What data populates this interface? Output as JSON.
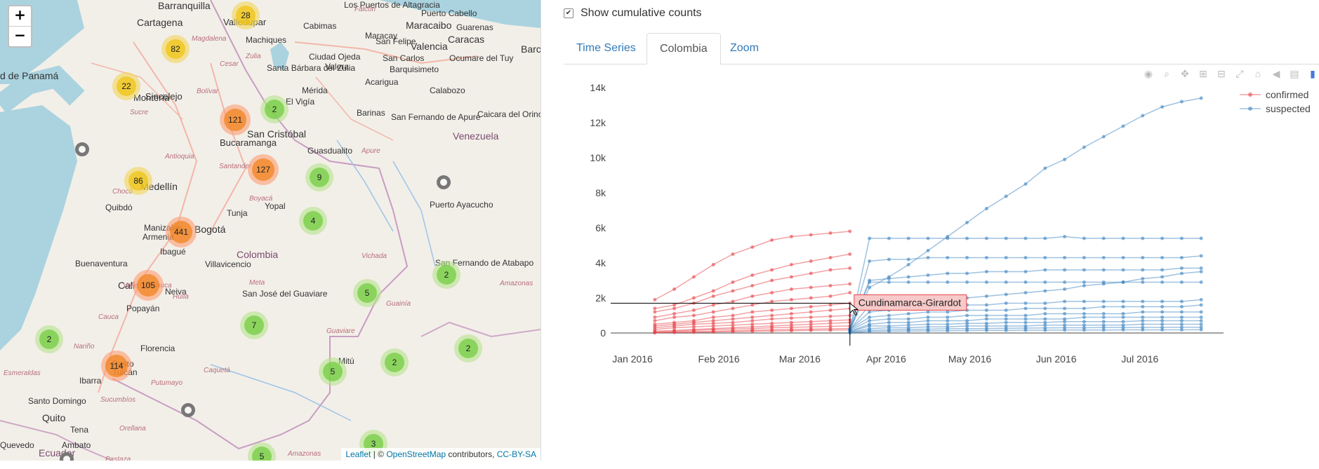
{
  "map": {
    "zoom_in": "+",
    "zoom_out": "−",
    "places": [
      {
        "name": "Barranquilla",
        "cls": "big"
      },
      {
        "name": "Cartagena",
        "cls": "big"
      },
      {
        "name": "Valledupar",
        "cls": ""
      },
      {
        "name": "Los Puertos de Altagracia",
        "cls": "small"
      },
      {
        "name": "Cabimas",
        "cls": "small"
      },
      {
        "name": "Maracaibo",
        "cls": "big"
      },
      {
        "name": "Puerto Cabello",
        "cls": "small"
      },
      {
        "name": "Maracay",
        "cls": "small"
      },
      {
        "name": "Guarenas",
        "cls": "small"
      },
      {
        "name": "Caracas",
        "cls": "big"
      },
      {
        "name": "Barc",
        "cls": "big"
      },
      {
        "name": "San Felipe",
        "cls": "small"
      },
      {
        "name": "Valencia",
        "cls": "big"
      },
      {
        "name": "San Carlos",
        "cls": "small"
      },
      {
        "name": "Ocumare del Tuy",
        "cls": "small"
      },
      {
        "name": "Machiques",
        "cls": "small"
      },
      {
        "name": "Ciudad Ojeda",
        "cls": "small"
      },
      {
        "name": "Santa Bárbara del Zulia",
        "cls": "small"
      },
      {
        "name": "Valera",
        "cls": "small"
      },
      {
        "name": "Barquisimeto",
        "cls": "small"
      },
      {
        "name": "Acarigua",
        "cls": "small"
      },
      {
        "name": "Calabozo",
        "cls": "small"
      },
      {
        "name": "Sincelejo",
        "cls": ""
      },
      {
        "name": "Montería",
        "cls": ""
      },
      {
        "name": "d de Panamá",
        "cls": "big"
      },
      {
        "name": "El Vigía",
        "cls": "small"
      },
      {
        "name": "Mérida",
        "cls": "small"
      },
      {
        "name": "Barinas",
        "cls": "small"
      },
      {
        "name": "San Cristóbal",
        "cls": "big"
      },
      {
        "name": "Bucaramanga",
        "cls": ""
      },
      {
        "name": "San Fernando de Apure",
        "cls": "small"
      },
      {
        "name": "Caicara del Orinoco",
        "cls": "small"
      },
      {
        "name": "Venezuela",
        "cls": "country"
      },
      {
        "name": "Guasdualito",
        "cls": "small"
      },
      {
        "name": "Medellín",
        "cls": "big"
      },
      {
        "name": "Quibdó",
        "cls": "small"
      },
      {
        "name": "Yopal",
        "cls": "small"
      },
      {
        "name": "Tunja",
        "cls": "small"
      },
      {
        "name": "Puerto Ayacucho",
        "cls": "small"
      },
      {
        "name": "Bogotá",
        "cls": "big"
      },
      {
        "name": "Manizales",
        "cls": "small"
      },
      {
        "name": "Armenia",
        "cls": "small"
      },
      {
        "name": "Ibagué",
        "cls": "small"
      },
      {
        "name": "Villavicencio",
        "cls": "small"
      },
      {
        "name": "Colombia",
        "cls": "country"
      },
      {
        "name": "Buenaventura",
        "cls": "small"
      },
      {
        "name": "Cali",
        "cls": "big"
      },
      {
        "name": "Neiva",
        "cls": "small"
      },
      {
        "name": "San José del Guaviare",
        "cls": "small"
      },
      {
        "name": "San Fernando de Atabapo",
        "cls": "small"
      },
      {
        "name": "Popayán",
        "cls": "small"
      },
      {
        "name": "Florencia",
        "cls": "small"
      },
      {
        "name": "Mitú",
        "cls": "small"
      },
      {
        "name": "Pasto",
        "cls": "small"
      },
      {
        "name": "Tulcán",
        "cls": "small"
      },
      {
        "name": "Ibarra",
        "cls": "small"
      },
      {
        "name": "Santo Domingo",
        "cls": "small"
      },
      {
        "name": "Quito",
        "cls": "big"
      },
      {
        "name": "Tena",
        "cls": "small"
      },
      {
        "name": "Quevedo",
        "cls": "small"
      },
      {
        "name": "Ambato",
        "cls": "small"
      },
      {
        "name": "Ecuador",
        "cls": "country"
      },
      {
        "name": "Pastaza",
        "cls": "region"
      },
      {
        "name": "Amazonas",
        "cls": "region"
      },
      {
        "name": "Guainía",
        "cls": "region"
      },
      {
        "name": "Vichada",
        "cls": "region"
      },
      {
        "name": "Guaviare",
        "cls": "region"
      },
      {
        "name": "Caquetá",
        "cls": "region"
      },
      {
        "name": "Putumayo",
        "cls": "region"
      },
      {
        "name": "Nariño",
        "cls": "region"
      },
      {
        "name": "Cauca",
        "cls": "region"
      },
      {
        "name": "Huila",
        "cls": "region"
      },
      {
        "name": "Meta",
        "cls": "region"
      },
      {
        "name": "Boyacá",
        "cls": "region"
      },
      {
        "name": "Santander",
        "cls": "region"
      },
      {
        "name": "Antioquia",
        "cls": "region"
      },
      {
        "name": "Chocó",
        "cls": "region"
      },
      {
        "name": "Sucre",
        "cls": "region"
      },
      {
        "name": "Bolívar",
        "cls": "region"
      },
      {
        "name": "Cesar",
        "cls": "region"
      },
      {
        "name": "Zulia",
        "cls": "region"
      },
      {
        "name": "Apure",
        "cls": "region"
      },
      {
        "name": "Valle del Cauca",
        "cls": "region"
      },
      {
        "name": "Sucumbíos",
        "cls": "region"
      },
      {
        "name": "Esmeraldas",
        "cls": "region"
      },
      {
        "name": "Orellana",
        "cls": "region"
      },
      {
        "name": "Falcón",
        "cls": "region"
      },
      {
        "name": "Magdalena",
        "cls": "region"
      },
      {
        "name": "Amazonas",
        "cls": "region"
      }
    ],
    "clusters": [
      {
        "label": "28",
        "color": "yellow"
      },
      {
        "label": "82",
        "color": "yellow"
      },
      {
        "label": "22",
        "color": "yellow"
      },
      {
        "label": "121",
        "color": "orange"
      },
      {
        "label": "2",
        "color": "green"
      },
      {
        "label": "127",
        "color": "orange"
      },
      {
        "label": "9",
        "color": "green"
      },
      {
        "label": "86",
        "color": "yellow"
      },
      {
        "label": "441",
        "color": "orange"
      },
      {
        "label": "4",
        "color": "green"
      },
      {
        "label": "105",
        "color": "orange"
      },
      {
        "label": "2",
        "color": "green"
      },
      {
        "label": "5",
        "color": "green"
      },
      {
        "label": "7",
        "color": "green"
      },
      {
        "label": "2",
        "color": "green"
      },
      {
        "label": "114",
        "color": "orange"
      },
      {
        "label": "5",
        "color": "green"
      },
      {
        "label": "2",
        "color": "green"
      },
      {
        "label": "2",
        "color": "green"
      },
      {
        "label": "3",
        "color": "green"
      },
      {
        "label": "5",
        "color": "green"
      }
    ],
    "attribution": {
      "leaflet": "Leaflet",
      "sep": " | © ",
      "osm": "OpenStreetMap",
      "contrib": " contributors, ",
      "license": "CC-BY-SA"
    }
  },
  "controls": {
    "cumulative_label": "Show cumulative counts",
    "cumulative_checked": true
  },
  "tabs": [
    {
      "label": "Time Series",
      "active": false
    },
    {
      "label": "Colombia",
      "active": true
    },
    {
      "label": "Zoom",
      "active": false
    }
  ],
  "modebar_icons": [
    "camera-icon",
    "zoom-icon",
    "pan-icon",
    "zoom-in-icon",
    "zoom-out-icon",
    "autoscale-icon",
    "reset-axes-icon",
    "spike-lines-icon",
    "hover-compare-icon",
    "plotly-logo-icon"
  ],
  "hover_label": "Cundinamarca-Girardot",
  "chart_data": {
    "type": "line",
    "x_ticks": [
      "Jan 2016",
      "Feb 2016",
      "Mar 2016",
      "Apr 2016",
      "May 2016",
      "Jun 2016",
      "Jul 2016"
    ],
    "y_ticks": [
      "14k",
      "12k",
      "10k",
      "8k",
      "6k",
      "4k",
      "2k",
      "0"
    ],
    "ylim": [
      0,
      14000
    ],
    "legend": [
      {
        "name": "confirmed",
        "color": "#e8464b"
      },
      {
        "name": "suspected",
        "color": "#3f86c2"
      }
    ],
    "confirmed_x": [
      "2016-01-09",
      "2016-01-16",
      "2016-01-23",
      "2016-01-30",
      "2016-02-06",
      "2016-02-13",
      "2016-02-20",
      "2016-02-27",
      "2016-03-05",
      "2016-03-12",
      "2016-03-19"
    ],
    "suspected_x": [
      "2016-03-19",
      "2016-03-26",
      "2016-04-02",
      "2016-04-09",
      "2016-04-16",
      "2016-04-23",
      "2016-04-30",
      "2016-05-07",
      "2016-05-14",
      "2016-05-21",
      "2016-05-28",
      "2016-06-04",
      "2016-06-11",
      "2016-06-18",
      "2016-06-25",
      "2016-07-02",
      "2016-07-09",
      "2016-07-16",
      "2016-07-23"
    ],
    "confirmed_series": [
      {
        "values": [
          1900,
          2500,
          3200,
          3900,
          4500,
          4900,
          5300,
          5500,
          5600,
          5700,
          5800
        ]
      },
      {
        "values": [
          1400,
          1600,
          2000,
          2400,
          2900,
          3300,
          3600,
          3900,
          4100,
          4300,
          4500
        ]
      },
      {
        "values": [
          1200,
          1400,
          1700,
          2100,
          2400,
          2700,
          3000,
          3200,
          3400,
          3600,
          3700
        ]
      },
      {
        "values": [
          900,
          1100,
          1300,
          1600,
          1800,
          2100,
          2300,
          2500,
          2600,
          2700,
          2800
        ]
      },
      {
        "values": [
          700,
          900,
          1000,
          1200,
          1400,
          1600,
          1800,
          1900,
          2000,
          2100,
          2300
        ]
      },
      {
        "values": [
          500,
          600,
          700,
          900,
          1000,
          1200,
          1300,
          1400,
          1500,
          1600,
          1700
        ]
      },
      {
        "values": [
          400,
          500,
          600,
          700,
          800,
          900,
          1000,
          1100,
          1200,
          1300,
          1400
        ]
      },
      {
        "values": [
          300,
          400,
          500,
          550,
          600,
          700,
          800,
          850,
          900,
          950,
          1000
        ]
      },
      {
        "values": [
          200,
          300,
          350,
          400,
          450,
          500,
          550,
          600,
          650,
          700,
          750
        ]
      },
      {
        "values": [
          100,
          150,
          200,
          250,
          300,
          350,
          400,
          450,
          500,
          550,
          600
        ]
      },
      {
        "values": [
          50,
          100,
          150,
          200,
          220,
          250,
          300,
          320,
          350,
          380,
          400
        ]
      },
      {
        "values": [
          30,
          50,
          80,
          100,
          120,
          150,
          180,
          200,
          220,
          240,
          260
        ]
      },
      {
        "values": [
          10,
          30,
          40,
          60,
          80,
          100,
          110,
          130,
          150,
          160,
          180
        ]
      }
    ],
    "suspected_series": [
      {
        "values": [
          200,
          2600,
          3200,
          3900,
          4700,
          5500,
          6300,
          7100,
          7800,
          8500,
          9400,
          9900,
          10600,
          11200,
          11800,
          12400,
          12900,
          13200,
          13400
        ]
      },
      {
        "values": [
          200,
          5400,
          5400,
          5400,
          5400,
          5400,
          5400,
          5400,
          5400,
          5400,
          5400,
          5500,
          5400,
          5400,
          5400,
          5400,
          5400,
          5400,
          5400
        ]
      },
      {
        "values": [
          200,
          4100,
          4200,
          4200,
          4300,
          4300,
          4300,
          4300,
          4300,
          4300,
          4300,
          4300,
          4300,
          4300,
          4300,
          4300,
          4300,
          4300,
          4400
        ]
      },
      {
        "values": [
          200,
          3000,
          3100,
          3200,
          3300,
          3400,
          3400,
          3500,
          3500,
          3500,
          3600,
          3600,
          3600,
          3600,
          3600,
          3600,
          3600,
          3700,
          3700
        ]
      },
      {
        "values": [
          200,
          2900,
          2900,
          2900,
          2900,
          2900,
          2900,
          2900,
          2900,
          2900,
          2900,
          2900,
          2900,
          2900,
          2900,
          2900,
          2900,
          2900,
          2900
        ]
      },
      {
        "values": [
          200,
          1600,
          1700,
          1800,
          1800,
          1900,
          2000,
          2100,
          2200,
          2300,
          2400,
          2500,
          2700,
          2800,
          2900,
          3100,
          3200,
          3400,
          3500
        ]
      },
      {
        "values": [
          200,
          1200,
          1300,
          1400,
          1500,
          1500,
          1600,
          1600,
          1700,
          1700,
          1700,
          1800,
          1800,
          1800,
          1800,
          1800,
          1800,
          1800,
          1900
        ]
      },
      {
        "values": [
          200,
          900,
          1000,
          1100,
          1200,
          1200,
          1300,
          1300,
          1300,
          1400,
          1400,
          1400,
          1400,
          1500,
          1500,
          1500,
          1500,
          1500,
          1600
        ]
      },
      {
        "values": [
          150,
          700,
          800,
          800,
          900,
          900,
          1000,
          1000,
          1000,
          1000,
          1100,
          1100,
          1100,
          1100,
          1100,
          1200,
          1200,
          1200,
          1200
        ]
      },
      {
        "values": [
          100,
          500,
          600,
          600,
          700,
          700,
          700,
          800,
          800,
          800,
          800,
          800,
          900,
          900,
          900,
          900,
          900,
          900,
          900
        ]
      },
      {
        "values": [
          80,
          400,
          400,
          450,
          500,
          500,
          550,
          550,
          600,
          600,
          600,
          650,
          650,
          650,
          650,
          700,
          700,
          700,
          700
        ]
      },
      {
        "values": [
          50,
          250,
          300,
          300,
          350,
          350,
          400,
          400,
          400,
          400,
          450,
          450,
          450,
          450,
          450,
          500,
          500,
          500,
          500
        ]
      },
      {
        "values": [
          30,
          150,
          180,
          200,
          220,
          240,
          250,
          260,
          270,
          280,
          290,
          300,
          300,
          310,
          310,
          320,
          320,
          330,
          330
        ]
      },
      {
        "values": [
          10,
          80,
          100,
          110,
          120,
          130,
          140,
          150,
          150,
          160,
          160,
          170,
          170,
          170,
          180,
          180,
          180,
          180,
          190
        ]
      }
    ]
  }
}
